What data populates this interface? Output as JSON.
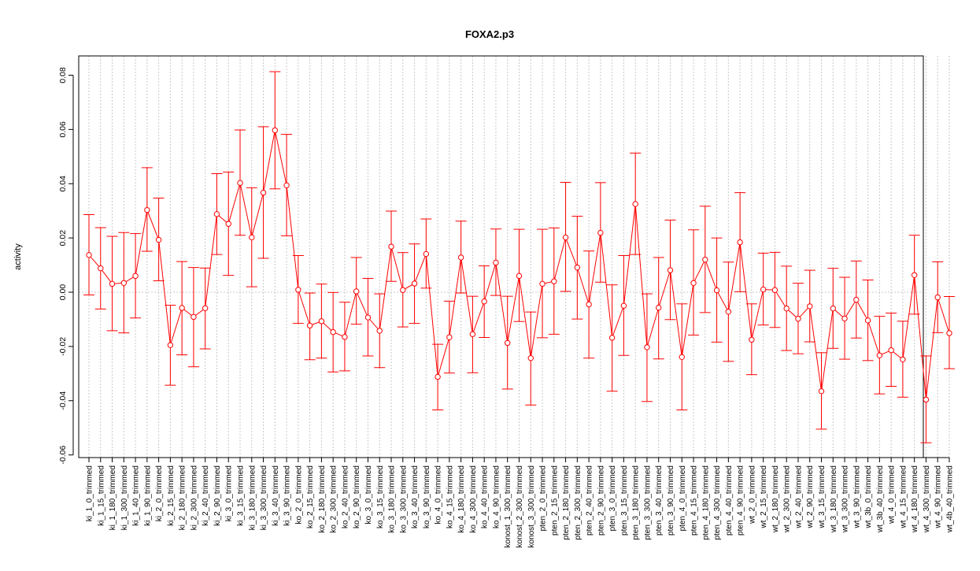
{
  "chart_data": {
    "type": "line",
    "title": "FOXA2.p3",
    "xlabel": "",
    "ylabel": "activity",
    "ylim": [
      -0.06,
      0.08
    ],
    "yticks": [
      -0.06,
      -0.04,
      -0.02,
      0.0,
      0.02,
      0.04,
      0.06,
      0.08
    ],
    "ytick_labels": [
      "-0.06",
      "-0.04",
      "-0.02",
      "0.00",
      "0.02",
      "0.04",
      "0.06",
      "0.08"
    ],
    "grid": true,
    "reference_line": 0.0,
    "series_color": "#ff0000",
    "grid_color": "#c8c8c8",
    "categories": [
      "ki_1_0_trimmed",
      "ki_1_15_trimmed",
      "ki_1_180_trimmed",
      "ki_1_300_trimmed",
      "ki_1_40_trimmed",
      "ki_1_90_trimmed",
      "ki_2_0_trimmed",
      "ki_2_15_trimmed",
      "ki_2_180_trimmed",
      "ki_2_300_trimmed",
      "ki_2_40_trimmed",
      "ki_2_90_trimmed",
      "ki_3_0_trimmed",
      "ki_3_15_trimmed",
      "ki_3_180_trimmed",
      "ki_3_300_trimmed",
      "ki_3_40_trimmed",
      "ki_3_90_trimmed",
      "ko_2_0_trimmed",
      "ko_2_15_trimmed",
      "ko_2_180_trimmed",
      "ko_2_300_trimmed",
      "ko_2_40_trimmed",
      "ko_2_90_trimmed",
      "ko_3_0_trimmed",
      "ko_3_15_trimmed",
      "ko_3_180_trimmed",
      "ko_3_300_trimmed",
      "ko_3_40_trimmed",
      "ko_3_90_trimmed",
      "ko_4_0_trimmed",
      "ko_4_15_trimmed",
      "ko_4_180_trimmed",
      "ko_4_300_trimmed",
      "ko_4_40_trimmed",
      "ko_4_90_trimmed",
      "konost_1_300_trimmed",
      "konost_2_300_trimmed",
      "konost_3_300_trimmed",
      "pten_2_0_trimmed",
      "pten_2_15_trimmed",
      "pten_2_180_trimmed",
      "pten_2_300_trimmed",
      "pten_2_40_trimmed",
      "pten_2_90_trimmed",
      "pten_3_0_trimmed",
      "pten_3_15_trimmed",
      "pten_3_180_trimmed",
      "pten_3_300_trimmed",
      "pten_3_40_trimmed",
      "pten_3_90_trimmed",
      "pten_4_0_trimmed",
      "pten_4_15_trimmed",
      "pten_4_180_trimmed",
      "pten_4_300_trimmed",
      "pten_4_40_trimmed",
      "pten_4_90_trimmed",
      "wt_2_0_trimmed",
      "wt_2_15_trimmed",
      "wt_2_180_trimmed",
      "wt_2_300_trimmed",
      "wt_2_40_trimmed",
      "wt_2_90_trimmed",
      "wt_3_15_trimmed",
      "wt_3_180_trimmed",
      "wt_3_300_trimmed",
      "wt_3_90_trimmed",
      "wt_3b_0_trimmed",
      "wt_3b_40_trimmed",
      "wt_4_0_trimmed",
      "wt_4_15_trimmed",
      "wt_4_180_trimmed",
      "wt_4_300_trimmed",
      "wt_4_90_trimmed",
      "wt_4b_40_trimmed"
    ],
    "values": [
      0.0137,
      0.0088,
      0.0031,
      0.0034,
      0.006,
      0.0303,
      0.0193,
      -0.0195,
      -0.0058,
      -0.0091,
      -0.0059,
      0.0288,
      0.0252,
      0.0403,
      0.0202,
      0.0367,
      0.0597,
      0.0394,
      0.0009,
      -0.0123,
      -0.0107,
      -0.0147,
      -0.0165,
      0.0003,
      -0.0093,
      -0.0142,
      0.0168,
      0.0008,
      0.0032,
      0.0141,
      -0.0312,
      -0.0166,
      0.0128,
      -0.0155,
      -0.0034,
      0.0109,
      -0.0187,
      0.006,
      -0.0243,
      0.0031,
      0.004,
      0.0202,
      0.0091,
      -0.0045,
      0.0219,
      -0.0168,
      -0.005,
      0.0325,
      -0.0203,
      -0.0057,
      0.0081,
      -0.0239,
      0.0034,
      0.012,
      0.0007,
      -0.0072,
      0.0184,
      -0.0175,
      0.001,
      0.0008,
      -0.006,
      -0.0098,
      -0.0052,
      -0.0365,
      -0.006,
      -0.0097,
      -0.0028,
      -0.0104,
      -0.0233,
      -0.0214,
      -0.0248,
      0.0063,
      -0.0396,
      -0.0019,
      -0.0151
    ],
    "error_low": [
      -0.001,
      -0.0062,
      -0.0142,
      -0.015,
      -0.0095,
      0.0151,
      0.0042,
      -0.0343,
      -0.0231,
      -0.0275,
      -0.0209,
      0.0139,
      0.0062,
      0.021,
      0.002,
      0.0125,
      0.0381,
      0.0208,
      -0.0115,
      -0.0249,
      -0.0243,
      -0.0294,
      -0.029,
      -0.0118,
      -0.0235,
      -0.0278,
      0.004,
      -0.0128,
      -0.0115,
      0.0015,
      -0.0434,
      -0.0298,
      -0.0003,
      -0.0297,
      -0.0167,
      -0.0012,
      -0.0357,
      -0.0108,
      -0.0416,
      -0.0168,
      -0.0155,
      0.0003,
      -0.0099,
      -0.0243,
      0.0037,
      -0.0365,
      -0.0233,
      0.0139,
      -0.0403,
      -0.0246,
      -0.0101,
      -0.0434,
      -0.0158,
      -0.0075,
      -0.0184,
      -0.0255,
      0.0002,
      -0.0304,
      -0.0121,
      -0.013,
      -0.0215,
      -0.0227,
      -0.0183,
      -0.0505,
      -0.0207,
      -0.0247,
      -0.0169,
      -0.0252,
      -0.0375,
      -0.0347,
      -0.0387,
      -0.0081,
      -0.0555,
      -0.0149,
      -0.0282
    ],
    "error_high": [
      0.0286,
      0.0238,
      0.0206,
      0.022,
      0.0216,
      0.0459,
      0.0347,
      -0.0048,
      0.0113,
      0.0091,
      0.0089,
      0.0437,
      0.0443,
      0.0598,
      0.0385,
      0.061,
      0.0813,
      0.0582,
      0.0135,
      -0.0003,
      0.003,
      -0.0001,
      -0.0037,
      0.0128,
      0.0051,
      -0.0006,
      0.0299,
      0.0146,
      0.0178,
      0.027,
      -0.0192,
      -0.0033,
      0.0262,
      -0.0015,
      0.0097,
      0.0233,
      -0.0015,
      0.0232,
      -0.0073,
      0.0232,
      0.0237,
      0.0405,
      0.028,
      0.0152,
      0.0404,
      0.0027,
      0.0135,
      0.0513,
      -0.0006,
      0.0128,
      0.0266,
      -0.0043,
      0.023,
      0.0317,
      0.02,
      0.0111,
      0.0367,
      -0.0043,
      0.0144,
      0.0147,
      0.0096,
      0.0033,
      0.0081,
      -0.0223,
      0.0088,
      0.0055,
      0.0115,
      0.0045,
      -0.0089,
      -0.0077,
      -0.0107,
      0.021,
      -0.0235,
      0.0112,
      -0.0016
    ]
  }
}
